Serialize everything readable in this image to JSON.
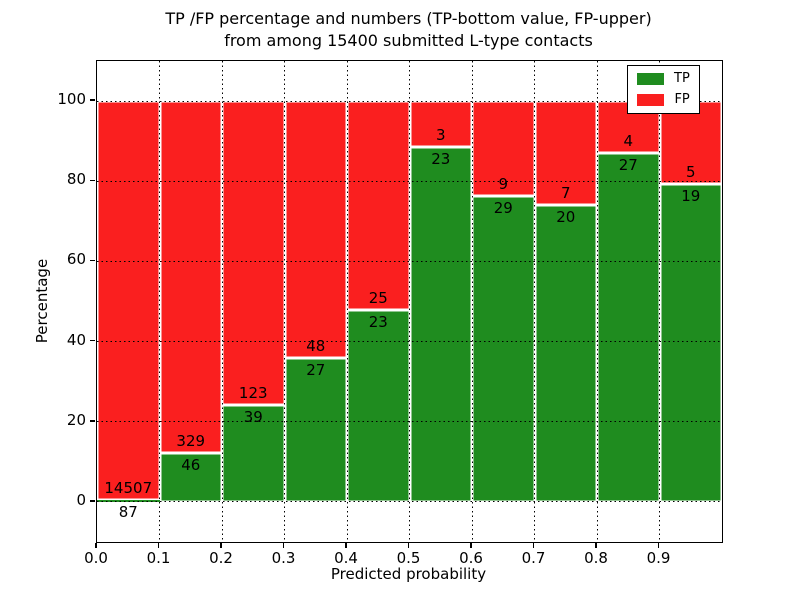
{
  "figure": {
    "title_line1": "TP /FP percentage and numbers (TP-bottom value, FP-upper)",
    "title_line2": "from among 15400 submitted L-type contacts"
  },
  "chart_data": {
    "type": "bar",
    "stacked": true,
    "title": "TP /FP percentage and numbers (TP-bottom value, FP-upper)\nfrom among 15400 submitted L-type contacts",
    "xlabel": "Predicted probability",
    "ylabel": "Percentage",
    "xlim": [
      0.0,
      1.0
    ],
    "ylim": [
      -10,
      110
    ],
    "xticks": [
      "0.0",
      "0.1",
      "0.2",
      "0.3",
      "0.4",
      "0.5",
      "0.6",
      "0.7",
      "0.8",
      "0.9"
    ],
    "yticks": [
      0,
      20,
      40,
      60,
      80,
      100
    ],
    "grid": "dotted",
    "bar_width": 0.1,
    "categories": [
      "0.0-0.1",
      "0.1-0.2",
      "0.2-0.3",
      "0.3-0.4",
      "0.4-0.5",
      "0.5-0.6",
      "0.6-0.7",
      "0.7-0.8",
      "0.8-0.9",
      "0.9-1.0"
    ],
    "series": [
      {
        "name": "TP",
        "color": "#1f8c1f",
        "counts": [
          87,
          46,
          39,
          27,
          23,
          23,
          29,
          20,
          27,
          19
        ]
      },
      {
        "name": "FP",
        "color": "#fa1f1f",
        "counts": [
          14507,
          329,
          123,
          48,
          25,
          3,
          9,
          7,
          4,
          5
        ]
      }
    ],
    "tp_percent": [
      0.6,
      12.3,
      24.1,
      36.0,
      47.9,
      88.5,
      76.3,
      74.1,
      87.1,
      79.2
    ],
    "fp_top_percent": 100,
    "legend": {
      "position": "upper right",
      "entries": [
        {
          "label": "TP",
          "color": "#1f8c1f"
        },
        {
          "label": "FP",
          "color": "#fa1f1f"
        }
      ]
    }
  }
}
